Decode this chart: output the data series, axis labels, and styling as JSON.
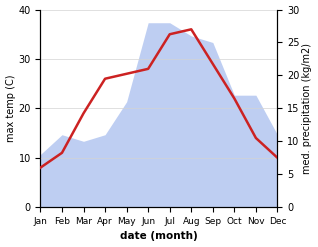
{
  "months": [
    "Jan",
    "Feb",
    "Mar",
    "Apr",
    "May",
    "Jun",
    "Jul",
    "Aug",
    "Sep",
    "Oct",
    "Nov",
    "Dec"
  ],
  "temperature": [
    8,
    11,
    19,
    26,
    27,
    28,
    35,
    36,
    29,
    22,
    14,
    10
  ],
  "precipitation": [
    8,
    11,
    10,
    11,
    16,
    28,
    28,
    26,
    25,
    17,
    17,
    11
  ],
  "temp_color": "#cc2222",
  "precip_color": "#b3c6f0",
  "temp_ylim": [
    0,
    40
  ],
  "precip_ylim": [
    0,
    30
  ],
  "temp_yticks": [
    0,
    10,
    20,
    30,
    40
  ],
  "precip_yticks": [
    0,
    5,
    10,
    15,
    20,
    25,
    30
  ],
  "xlabel": "date (month)",
  "ylabel_left": "max temp (C)",
  "ylabel_right": "med. precipitation (kg/m2)",
  "figsize": [
    3.18,
    2.47
  ],
  "dpi": 100
}
